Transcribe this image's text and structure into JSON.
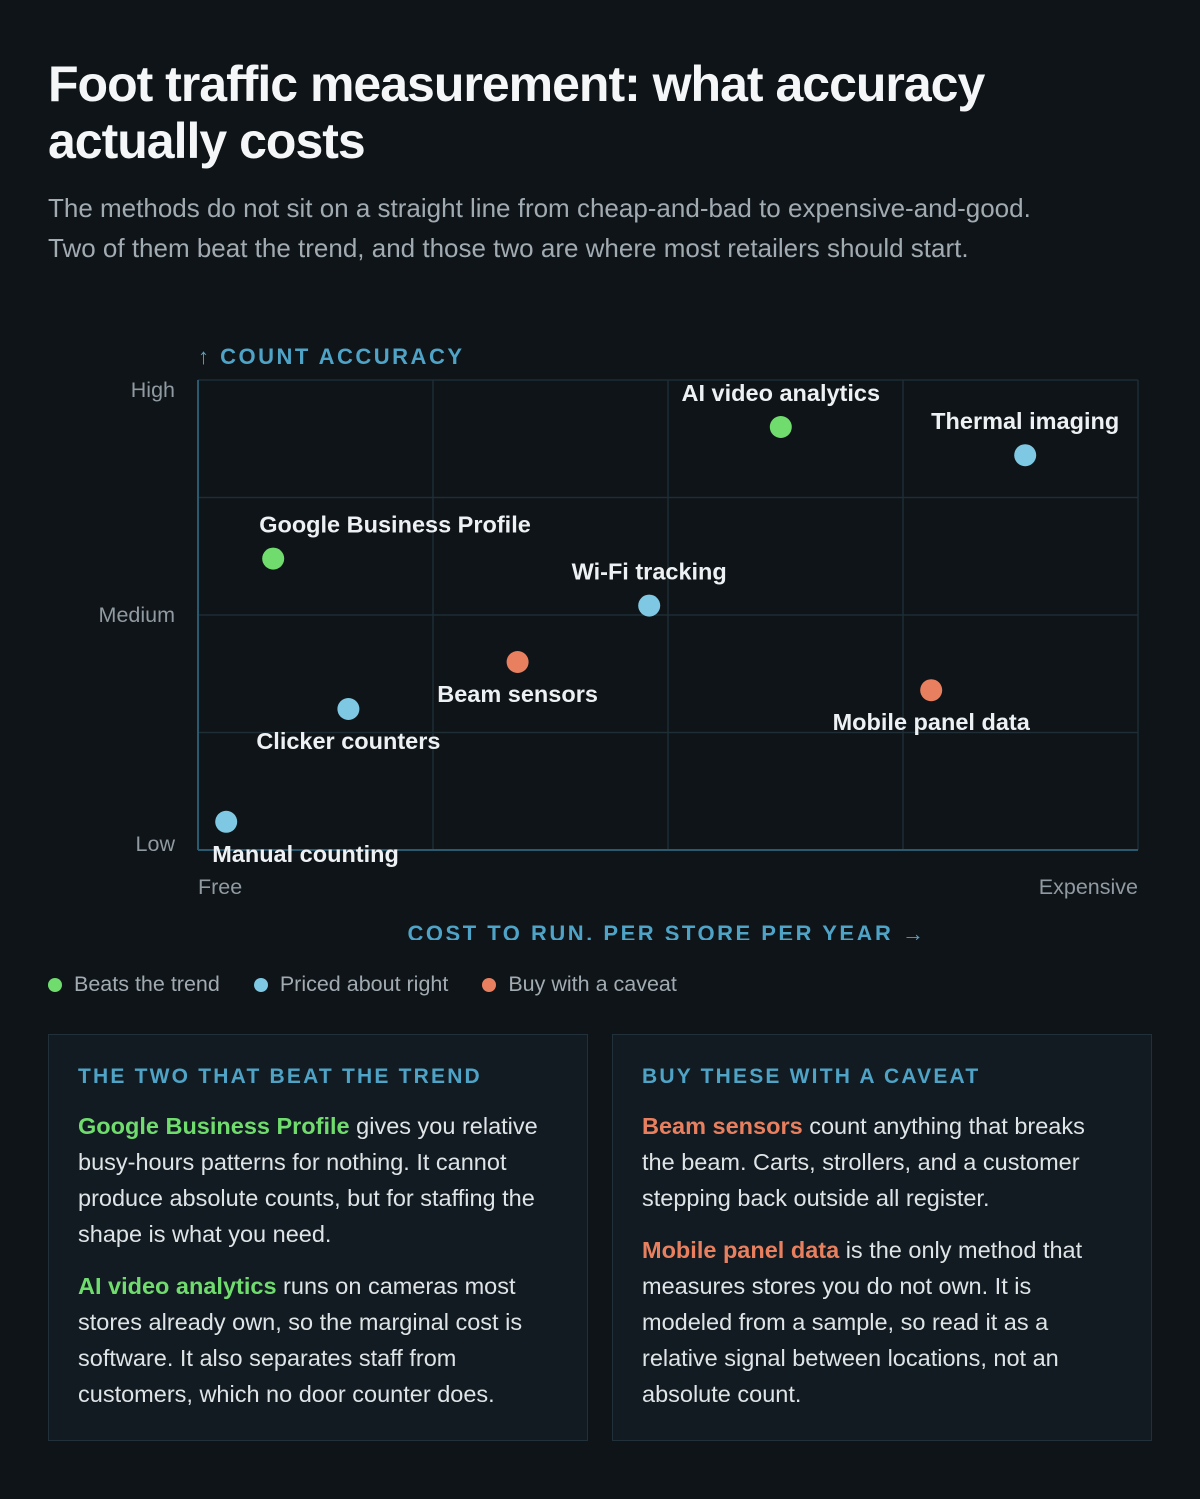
{
  "title": "Foot traffic measurement: what accuracy actually costs",
  "subtitle": "The methods do not sit on a straight line from cheap-and-bad to expensive-and-good. Two of them beat the trend, and those two are where most retailers should start.",
  "colors": {
    "beats_trend": "#6fdc6d",
    "priced_right": "#7ec8e3",
    "caveat": "#e8805f",
    "axis_accent": "#4ea3c6"
  },
  "chart_data": {
    "type": "scatter",
    "title": "",
    "ylabel": "↑ COUNT ACCURACY",
    "xlabel": "COST TO RUN, PER STORE PER YEAR →",
    "x_ticks": {
      "min_label": "Free",
      "max_label": "Expensive"
    },
    "y_ticks": [
      "High",
      "Medium",
      "Low"
    ],
    "xlim": [
      0,
      100
    ],
    "ylim": [
      0,
      100
    ],
    "grid": true,
    "legend_position": "bottom-left",
    "points": [
      {
        "label": "AI video analytics",
        "x": 62,
        "y": 90,
        "category": "beats_trend"
      },
      {
        "label": "Thermal imaging",
        "x": 88,
        "y": 84,
        "category": "priced_right"
      },
      {
        "label": "Google Business Profile",
        "x": 8,
        "y": 62,
        "category": "beats_trend"
      },
      {
        "label": "Wi-Fi tracking",
        "x": 48,
        "y": 52,
        "category": "priced_right"
      },
      {
        "label": "Beam sensors",
        "x": 34,
        "y": 40,
        "category": "caveat"
      },
      {
        "label": "Mobile panel data",
        "x": 78,
        "y": 34,
        "category": "caveat"
      },
      {
        "label": "Clicker counters",
        "x": 16,
        "y": 30,
        "category": "priced_right"
      },
      {
        "label": "Manual counting",
        "x": 3,
        "y": 6,
        "category": "priced_right"
      }
    ]
  },
  "legend": [
    {
      "key": "beats_trend",
      "label": "Beats the trend"
    },
    {
      "key": "priced_right",
      "label": "Priced about right"
    },
    {
      "key": "caveat",
      "label": "Buy with a caveat"
    }
  ],
  "cards": {
    "left": {
      "heading": "THE TWO THAT BEAT THE TREND",
      "items": [
        {
          "highlight": "Google Business Profile",
          "text": " gives you relative busy-hours patterns for nothing. It cannot produce absolute counts, but for staffing the shape is what you need."
        },
        {
          "highlight": "AI video analytics",
          "text": " runs on cameras most stores already own, so the marginal cost is software. It also separates staff from customers, which no door counter does."
        }
      ]
    },
    "right": {
      "heading": "BUY THESE WITH A CAVEAT",
      "items": [
        {
          "highlight": "Beam sensors",
          "text": " count anything that breaks the beam. Carts, strollers, and a customer stepping back outside all register."
        },
        {
          "highlight": "Mobile panel data",
          "text": " is the only method that measures stores you do not own. It is modeled from a sample, so read it as a relative signal between locations, not an absolute count."
        }
      ]
    }
  }
}
